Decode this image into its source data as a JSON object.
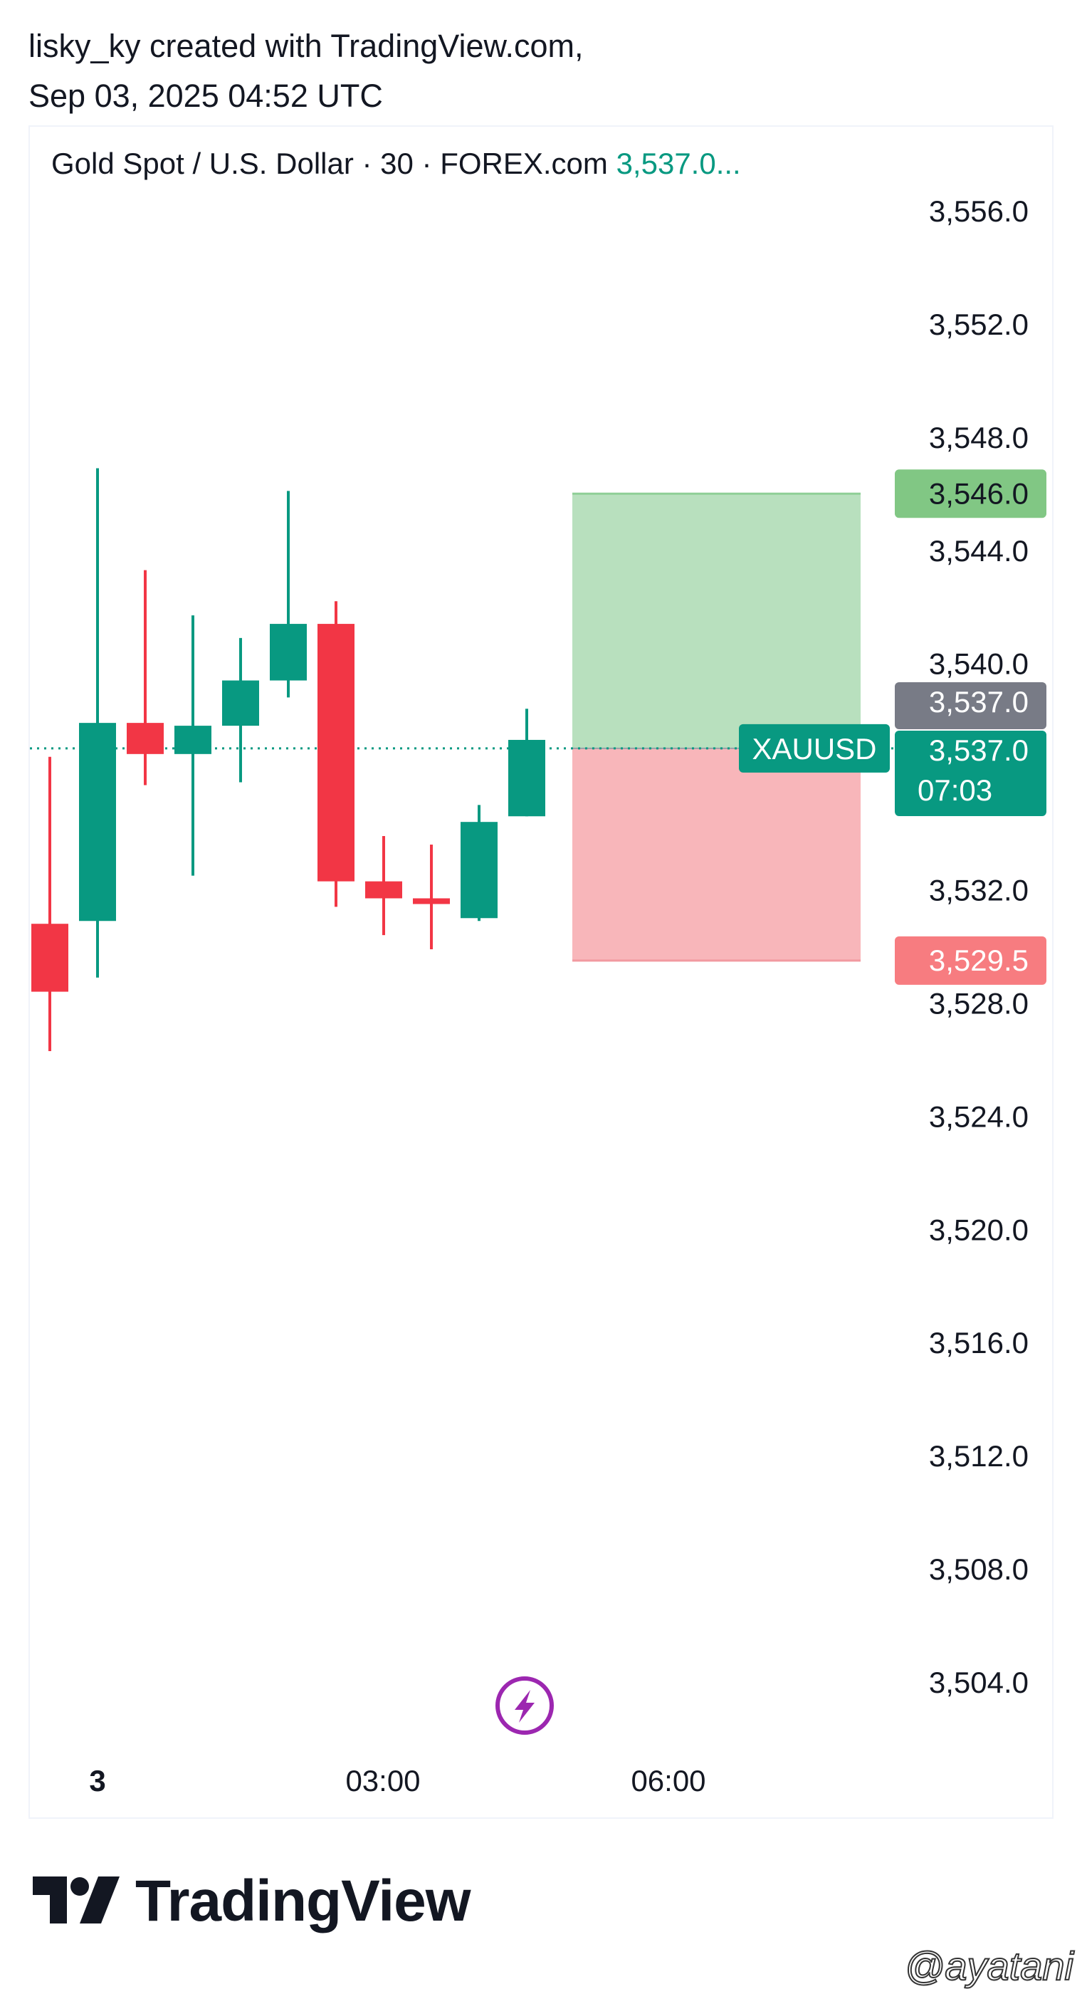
{
  "header": {
    "line1": "lisky_ky created with TradingView.com,",
    "line2": "Sep 03, 2025 04:52 UTC"
  },
  "legend": {
    "symbol_text": "Gold Spot / U.S. Dollar · 30 · FOREX.com",
    "price_text": "3,537.0..."
  },
  "chart_data": {
    "type": "candlestick",
    "interval": "30",
    "y_axis_ticks": [
      "3,556.0",
      "3,552.0",
      "3,548.0",
      "3,544.0",
      "3,540.0",
      "3,532.0",
      "3,528.0",
      "3,524.0",
      "3,520.0",
      "3,516.0",
      "3,512.0",
      "3,508.0",
      "3,504.0"
    ],
    "y_axis_tick_values": [
      3556,
      3552,
      3548,
      3544,
      3540,
      3532,
      3528,
      3524,
      3520,
      3516,
      3512,
      3508,
      3504
    ],
    "x_axis_ticks": [
      "3",
      "03:00",
      "06:00"
    ],
    "ylim": [
      3501.3,
      3558.5
    ],
    "candles": [
      {
        "open": 3530.8,
        "high": 3536.7,
        "low": 3526.3,
        "close": 3528.4
      },
      {
        "open": 3530.9,
        "high": 3546.9,
        "low": 3528.9,
        "close": 3537.9
      },
      {
        "open": 3537.9,
        "high": 3543.3,
        "low": 3535.7,
        "close": 3536.8
      },
      {
        "open": 3536.8,
        "high": 3541.7,
        "low": 3532.5,
        "close": 3537.8
      },
      {
        "open": 3537.8,
        "high": 3540.9,
        "low": 3535.8,
        "close": 3539.4
      },
      {
        "open": 3539.4,
        "high": 3546.1,
        "low": 3538.8,
        "close": 3541.4
      },
      {
        "open": 3541.4,
        "high": 3542.2,
        "low": 3531.4,
        "close": 3532.3
      },
      {
        "open": 3532.3,
        "high": 3533.9,
        "low": 3530.4,
        "close": 3531.7
      },
      {
        "open": 3531.7,
        "high": 3533.6,
        "low": 3529.9,
        "close": 3531.5
      },
      {
        "open": 3531.0,
        "high": 3535.0,
        "low": 3530.9,
        "close": 3534.4
      },
      {
        "open": 3534.6,
        "high": 3538.4,
        "low": 3534.6,
        "close": 3537.3
      }
    ],
    "current_price": 3537.0,
    "position_box": {
      "entry": 3537.0,
      "take_profit": 3546.0,
      "stop_loss": 3529.5
    },
    "price_labels": [
      {
        "text": "3,546.0",
        "value": 3546.0,
        "kind": "take-profit"
      },
      {
        "text": "3,537.0",
        "value": 3537.0,
        "kind": "entry"
      },
      {
        "text": "3,537.0",
        "value": 3537.0,
        "kind": "last-price",
        "countdown": "07:03"
      },
      {
        "text": "3,529.5",
        "value": 3529.5,
        "kind": "stop-loss"
      }
    ],
    "symbol_tag": "XAUUSD"
  },
  "colors": {
    "up": "#089981",
    "down": "#f23645",
    "tp_zone": "#b8e0be",
    "sl_zone": "#f8b6ba",
    "tp_label": "#81c784",
    "sl_label": "#f77c80",
    "entry_label": "#787b86",
    "lightning": "#9c27b0"
  },
  "footer": {
    "brand": "TradingView",
    "watermark": "@ayatani"
  }
}
